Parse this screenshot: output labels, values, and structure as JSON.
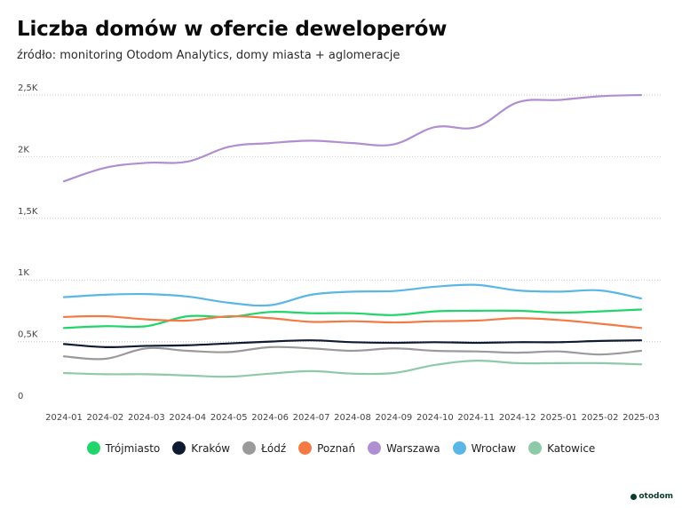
{
  "title": "Liczba domów w ofercie deweloperów",
  "subtitle": "źródło: monitoring Otodom Analytics, domy miasta + aglomeracje",
  "logo_text": "otodom",
  "chart_data": {
    "type": "line",
    "categories": [
      "2024-01",
      "2024-02",
      "2024-03",
      "2024-04",
      "2024-05",
      "2024-06",
      "2024-07",
      "2024-08",
      "2024-09",
      "2024-10",
      "2024-11",
      "2024-12",
      "2025-01",
      "2025-02",
      "2025-03"
    ],
    "ylim": [
      0,
      2500
    ],
    "yticks": [
      0,
      500,
      1000,
      1500,
      2000,
      2500
    ],
    "ytick_labels": [
      "0",
      "0,5K",
      "1K",
      "1,5K",
      "2K",
      "2,5K"
    ],
    "grid": "horizontal dashed",
    "legend_position": "bottom",
    "series": [
      {
        "name": "Trójmiasto",
        "color": "#21d56a",
        "values": [
          610,
          625,
          625,
          705,
          700,
          740,
          730,
          730,
          715,
          745,
          750,
          750,
          735,
          745,
          760
        ]
      },
      {
        "name": "Kraków",
        "color": "#0f1b33",
        "values": [
          480,
          455,
          465,
          470,
          485,
          500,
          510,
          495,
          490,
          495,
          490,
          495,
          495,
          505,
          510
        ]
      },
      {
        "name": "Łódź",
        "color": "#9a9a9a",
        "values": [
          380,
          360,
          445,
          425,
          415,
          455,
          445,
          425,
          445,
          425,
          420,
          410,
          420,
          395,
          425
        ]
      },
      {
        "name": "Poznań",
        "color": "#f47a45",
        "values": [
          700,
          705,
          680,
          670,
          705,
          690,
          660,
          665,
          655,
          665,
          670,
          690,
          675,
          645,
          610
        ]
      },
      {
        "name": "Warszawa",
        "color": "#b08fd0",
        "values": [
          1800,
          1910,
          1950,
          1960,
          2080,
          2110,
          2130,
          2110,
          2100,
          2240,
          2240,
          2440,
          2460,
          2490,
          2500
        ]
      },
      {
        "name": "Wrocław",
        "color": "#5ab7e5",
        "values": [
          860,
          880,
          885,
          865,
          815,
          795,
          880,
          905,
          910,
          945,
          960,
          915,
          905,
          915,
          850
        ]
      },
      {
        "name": "Katowice",
        "color": "#8ec9a8",
        "values": [
          245,
          235,
          235,
          225,
          215,
          240,
          260,
          240,
          245,
          310,
          345,
          325,
          325,
          325,
          315
        ]
      }
    ]
  }
}
